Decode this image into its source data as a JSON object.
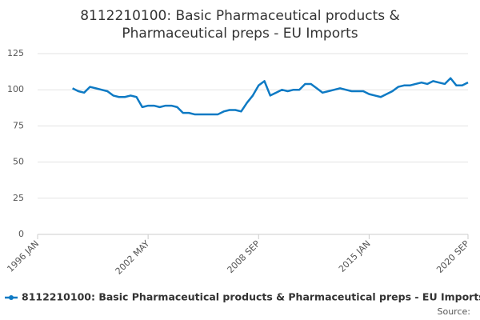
{
  "chart_data": {
    "type": "line",
    "title": [
      "8112210100: Basic Pharmaceutical products &",
      "Pharmaceutical preps - EU Imports"
    ],
    "categories": [
      "1996 JAN",
      null,
      null,
      null,
      null,
      null,
      null,
      null,
      null,
      null,
      null,
      null,
      null,
      null,
      null,
      null,
      null,
      null,
      null,
      "2002 MAY",
      null,
      null,
      null,
      null,
      null,
      null,
      null,
      null,
      null,
      null,
      null,
      null,
      null,
      null,
      null,
      null,
      null,
      null,
      "2008 SEP",
      null,
      null,
      null,
      null,
      null,
      null,
      null,
      null,
      null,
      null,
      null,
      null,
      null,
      null,
      null,
      null,
      null,
      null,
      "2015 JAN",
      null,
      null,
      null,
      null,
      null,
      null,
      null,
      null,
      null,
      null,
      null,
      null,
      null,
      null,
      null,
      null,
      "2020 SEP"
    ],
    "series": [
      {
        "name": "8112210100: Basic Pharmaceutical products & Pharmaceutical preps - EU Imports",
        "color": "#0e7ac4",
        "values": [
          null,
          null,
          null,
          null,
          null,
          null,
          101,
          99,
          98,
          102,
          101,
          100,
          99,
          96,
          95,
          95,
          96,
          95,
          88,
          89,
          89,
          88,
          89,
          89,
          88,
          84,
          84,
          83,
          83,
          83,
          83,
          83,
          85,
          86,
          86,
          85,
          91,
          96,
          103,
          106,
          96,
          98,
          100,
          99,
          100,
          100,
          104,
          104,
          101,
          98,
          99,
          100,
          101,
          100,
          99,
          99,
          99,
          97,
          96,
          95,
          97,
          99,
          102,
          103,
          103,
          104,
          105,
          104,
          106,
          105,
          104,
          108,
          103,
          103,
          105
        ]
      }
    ],
    "ylim": [
      0,
      125
    ],
    "yticks": [
      0,
      25,
      50,
      75,
      100,
      125
    ],
    "grid": true,
    "source": "Source:"
  }
}
